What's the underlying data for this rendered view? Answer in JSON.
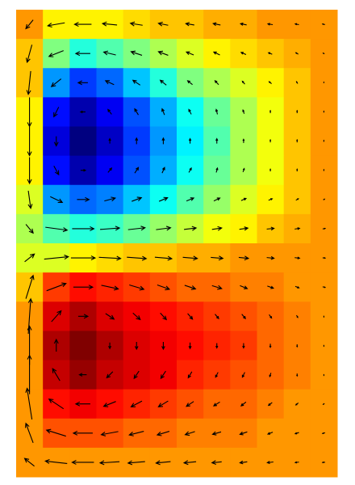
{
  "chart_data": {
    "type": "heatmap",
    "colormap": "jet",
    "arrow_color": "#000000",
    "background": "#ffffff",
    "zlim": [
      -1,
      1.2
    ],
    "z": [
      [
        0.6,
        0.4,
        0.4,
        0.4,
        0.45,
        0.5,
        0.5,
        0.55,
        0.55,
        0.6,
        0.6,
        0.6
      ],
      [
        0.5,
        0.1,
        -0.1,
        0,
        0.1,
        0.2,
        0.3,
        0.4,
        0.45,
        0.5,
        0.55,
        0.6
      ],
      [
        0.5,
        -0.4,
        -0.6,
        -0.5,
        -0.3,
        -0.1,
        0.1,
        0.2,
        0.3,
        0.4,
        0.5,
        0.6
      ],
      [
        0.4,
        -0.7,
        -0.9,
        -0.75,
        -0.55,
        -0.35,
        -0.15,
        0.05,
        0.2,
        0.35,
        0.5,
        0.6
      ],
      [
        0.4,
        -0.8,
        -1.0,
        -0.85,
        -0.6,
        -0.4,
        -0.2,
        0,
        0.2,
        0.35,
        0.5,
        0.6
      ],
      [
        0.4,
        -0.7,
        -0.9,
        -0.75,
        -0.55,
        -0.35,
        -0.15,
        0.05,
        0.2,
        0.35,
        0.5,
        0.6
      ],
      [
        0.3,
        -0.4,
        -0.5,
        -0.45,
        -0.3,
        -0.15,
        0,
        0.15,
        0.3,
        0.4,
        0.5,
        0.6
      ],
      [
        0.2,
        0,
        -0.1,
        -0.05,
        0.05,
        0.15,
        0.25,
        0.35,
        0.4,
        0.5,
        0.55,
        0.6
      ],
      [
        0.3,
        0.3,
        0.4,
        0.45,
        0.5,
        0.5,
        0.55,
        0.55,
        0.6,
        0.6,
        0.6,
        0.6
      ],
      [
        0.5,
        0.8,
        0.9,
        0.85,
        0.8,
        0.75,
        0.7,
        0.7,
        0.65,
        0.65,
        0.6,
        0.6
      ],
      [
        0.6,
        1.0,
        1.1,
        1.0,
        0.95,
        0.9,
        0.85,
        0.8,
        0.75,
        0.7,
        0.65,
        0.6
      ],
      [
        0.6,
        1.1,
        1.2,
        1.1,
        1.0,
        0.95,
        0.9,
        0.85,
        0.8,
        0.7,
        0.65,
        0.6
      ],
      [
        0.6,
        1.05,
        1.15,
        1.05,
        1.0,
        0.95,
        0.85,
        0.8,
        0.75,
        0.7,
        0.65,
        0.6
      ],
      [
        0.6,
        0.9,
        0.95,
        0.9,
        0.85,
        0.8,
        0.75,
        0.7,
        0.7,
        0.65,
        0.6,
        0.6
      ],
      [
        0.6,
        0.75,
        0.75,
        0.75,
        0.7,
        0.7,
        0.65,
        0.65,
        0.65,
        0.6,
        0.6,
        0.6
      ],
      [
        0.6,
        0.6,
        0.6,
        0.6,
        0.6,
        0.6,
        0.6,
        0.6,
        0.6,
        0.6,
        0.6,
        0.6
      ]
    ],
    "u": [
      [
        -0.3,
        -0.7,
        -0.7,
        -0.6,
        -0.5,
        -0.4,
        -0.35,
        -0.3,
        -0.25,
        -0.2,
        -0.15,
        -0.1
      ],
      [
        -0.2,
        -0.6,
        -0.6,
        -0.5,
        -0.45,
        -0.4,
        -0.3,
        -0.25,
        -0.2,
        -0.15,
        -0.1,
        -0.05
      ],
      [
        -0.1,
        -0.4,
        -0.4,
        -0.35,
        -0.3,
        -0.25,
        -0.2,
        -0.15,
        -0.1,
        -0.1,
        -0.05,
        0
      ],
      [
        0,
        -0.2,
        -0.2,
        -0.15,
        -0.15,
        -0.1,
        -0.1,
        -0.05,
        -0.05,
        0,
        0,
        0
      ],
      [
        0,
        0,
        0,
        0,
        0,
        0,
        0,
        0,
        0,
        0,
        0,
        0
      ],
      [
        0,
        0.2,
        0.2,
        0.15,
        0.15,
        0.1,
        0.1,
        0.05,
        0.05,
        0,
        0,
        0
      ],
      [
        0.1,
        0.5,
        0.5,
        0.45,
        0.4,
        0.35,
        0.3,
        0.25,
        0.2,
        0.15,
        0.1,
        0.05
      ],
      [
        0.3,
        0.9,
        0.9,
        0.8,
        0.7,
        0.6,
        0.5,
        0.4,
        0.35,
        0.3,
        0.2,
        0.1
      ],
      [
        0.4,
        1.0,
        1.0,
        0.9,
        0.8,
        0.7,
        0.6,
        0.5,
        0.4,
        0.3,
        0.2,
        0.1
      ],
      [
        0.3,
        0.8,
        0.8,
        0.7,
        0.6,
        0.5,
        0.45,
        0.4,
        0.3,
        0.25,
        0.15,
        0.1
      ],
      [
        0.1,
        0.4,
        0.4,
        0.35,
        0.3,
        0.25,
        0.2,
        0.15,
        0.15,
        0.1,
        0.05,
        0
      ],
      [
        0,
        0,
        0,
        0,
        0,
        0,
        0,
        0,
        0,
        0,
        0,
        0
      ],
      [
        0,
        -0.3,
        -0.3,
        -0.25,
        -0.2,
        -0.2,
        -0.15,
        -0.1,
        -0.1,
        -0.05,
        0,
        0
      ],
      [
        -0.2,
        -0.6,
        -0.6,
        -0.5,
        -0.45,
        -0.4,
        -0.3,
        -0.25,
        -0.2,
        -0.15,
        -0.1,
        -0.05
      ],
      [
        -0.3,
        -0.8,
        -0.8,
        -0.7,
        -0.6,
        -0.5,
        -0.4,
        -0.35,
        -0.3,
        -0.2,
        -0.15,
        -0.1
      ],
      [
        -0.4,
        -0.9,
        -0.9,
        -0.8,
        -0.7,
        -0.6,
        -0.5,
        -0.4,
        -0.3,
        -0.25,
        -0.15,
        -0.1
      ]
    ],
    "v": [
      [
        -0.36,
        -0.12,
        0,
        0.06,
        0.08,
        0.08,
        0.06,
        0.06,
        0.05,
        0.03,
        0.03,
        0.02
      ],
      [
        -0.72,
        -0.24,
        0,
        0.12,
        0.15,
        0.15,
        0.12,
        0.12,
        0.09,
        0.06,
        0.06,
        0.03
      ],
      [
        -0.96,
        -0.32,
        0,
        0.16,
        0.2,
        0.2,
        0.16,
        0.16,
        0.12,
        0.08,
        0.08,
        0.04
      ],
      [
        -1.2,
        -0.4,
        0,
        0.2,
        0.25,
        0.25,
        0.2,
        0.2,
        0.15,
        0.1,
        0.1,
        0.05
      ],
      [
        -1.2,
        -0.4,
        0,
        0.2,
        0.25,
        0.25,
        0.2,
        0.2,
        0.15,
        0.1,
        0.1,
        0.05
      ],
      [
        -1.08,
        -0.36,
        0,
        0.18,
        0.23,
        0.23,
        0.18,
        0.18,
        0.14,
        0.09,
        0.09,
        0.05
      ],
      [
        -0.72,
        -0.24,
        0,
        0.12,
        0.15,
        0.15,
        0.12,
        0.12,
        0.09,
        0.06,
        0.06,
        0.03
      ],
      [
        -0.36,
        -0.12,
        0,
        0.06,
        0.08,
        0.08,
        0.06,
        0.06,
        0.05,
        0.03,
        0.03,
        0.02
      ],
      [
        0.32,
        0.1,
        0,
        -0.05,
        -0.06,
        -0.06,
        -0.05,
        -0.04,
        -0.04,
        -0.03,
        -0.02,
        -0.01
      ],
      [
        0.96,
        0.3,
        0,
        -0.15,
        -0.18,
        -0.18,
        -0.15,
        -0.12,
        -0.12,
        -0.09,
        -0.06,
        -0.03
      ],
      [
        1.44,
        0.45,
        0,
        -0.23,
        -0.27,
        -0.27,
        -0.23,
        -0.18,
        -0.18,
        -0.14,
        -0.09,
        -0.05
      ],
      [
        1.6,
        0.5,
        0,
        -0.25,
        -0.3,
        -0.3,
        -0.25,
        -0.2,
        -0.2,
        -0.15,
        -0.1,
        -0.05
      ],
      [
        1.6,
        0.5,
        0,
        -0.25,
        -0.3,
        -0.3,
        -0.25,
        -0.2,
        -0.2,
        -0.15,
        -0.1,
        -0.05
      ],
      [
        1.28,
        0.4,
        0,
        -0.2,
        -0.24,
        -0.24,
        -0.2,
        -0.16,
        -0.16,
        -0.12,
        -0.08,
        -0.04
      ],
      [
        0.8,
        0.25,
        0,
        -0.13,
        -0.15,
        -0.15,
        -0.13,
        -0.1,
        -0.1,
        -0.08,
        -0.05,
        -0.03
      ],
      [
        0.32,
        0.1,
        0,
        -0.05,
        -0.06,
        -0.06,
        -0.05,
        -0.04,
        -0.04,
        -0.03,
        -0.02,
        -0.01
      ]
    ]
  }
}
